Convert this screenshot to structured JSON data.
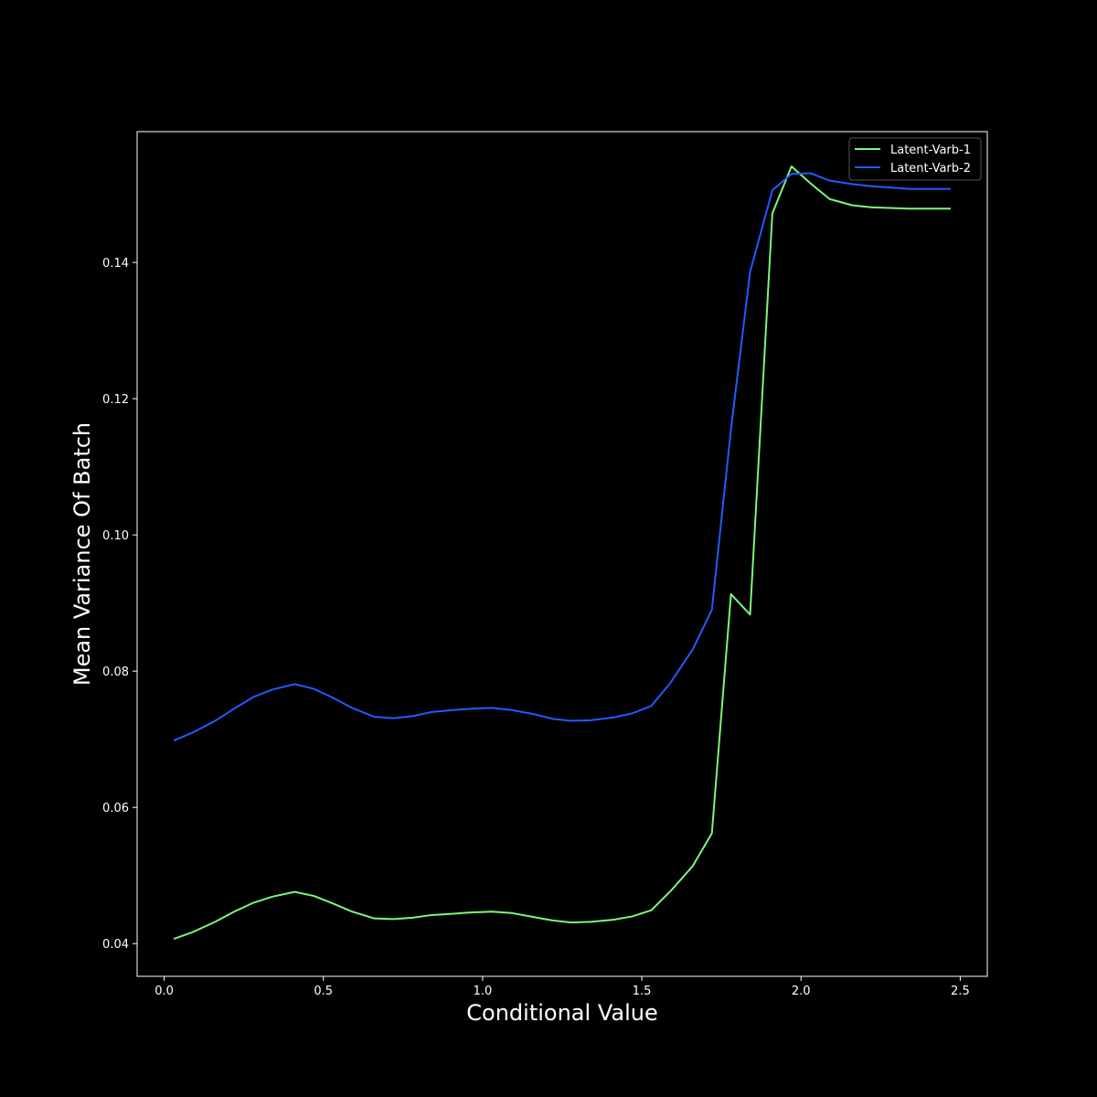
{
  "chart_data": {
    "type": "line",
    "xlabel": "Conditional Value",
    "ylabel": "Mean Variance Of Batch",
    "xlim": [
      -0.085,
      2.585
    ],
    "ylim": [
      0.0352,
      0.1592
    ],
    "xticks": [
      {
        "value": 0.0,
        "label": "0.0"
      },
      {
        "value": 0.5,
        "label": "0.5"
      },
      {
        "value": 1.0,
        "label": "1.0"
      },
      {
        "value": 1.5,
        "label": "1.5"
      },
      {
        "value": 2.0,
        "label": "2.0"
      },
      {
        "value": 2.5,
        "label": "2.5"
      }
    ],
    "yticks": [
      {
        "value": 0.04,
        "label": "0.04"
      },
      {
        "value": 0.06,
        "label": "0.06"
      },
      {
        "value": 0.08,
        "label": "0.08"
      },
      {
        "value": 0.1,
        "label": "0.10"
      },
      {
        "value": 0.12,
        "label": "0.12"
      },
      {
        "value": 0.14,
        "label": "0.14"
      }
    ],
    "grid": false,
    "legend_position": "top-right",
    "background": "#000000",
    "axes_color": "#ffffff",
    "x": [
      0.03,
      0.09,
      0.16,
      0.22,
      0.28,
      0.34,
      0.41,
      0.47,
      0.53,
      0.59,
      0.66,
      0.72,
      0.78,
      0.84,
      0.91,
      0.97,
      1.03,
      1.09,
      1.16,
      1.22,
      1.28,
      1.34,
      1.41,
      1.47,
      1.53,
      1.59,
      1.66,
      1.72,
      1.78,
      1.84,
      1.91,
      1.97,
      2.03,
      2.09,
      2.16,
      2.22,
      2.28,
      2.34,
      2.41,
      2.47
    ],
    "series": [
      {
        "name": "Latent-Varb-1",
        "color": "#7cf77c",
        "values": [
          0.0407,
          0.0417,
          0.0432,
          0.0447,
          0.046,
          0.0469,
          0.0476,
          0.047,
          0.0459,
          0.0447,
          0.0437,
          0.0436,
          0.0438,
          0.0442,
          0.0444,
          0.0446,
          0.0447,
          0.0445,
          0.0439,
          0.0434,
          0.0431,
          0.0432,
          0.0435,
          0.044,
          0.0449,
          0.0477,
          0.0514,
          0.0562,
          0.0913,
          0.0883,
          0.1472,
          0.1541,
          0.1516,
          0.1493,
          0.1484,
          0.1481,
          0.148,
          0.1479,
          0.1479,
          0.1479
        ]
      },
      {
        "name": "Latent-Varb-2",
        "color": "#1f5cff",
        "values": [
          0.0698,
          0.071,
          0.0727,
          0.0745,
          0.0762,
          0.0773,
          0.0781,
          0.0774,
          0.0761,
          0.0746,
          0.0733,
          0.0731,
          0.0734,
          0.074,
          0.0743,
          0.0745,
          0.0746,
          0.0743,
          0.0737,
          0.073,
          0.0727,
          0.0728,
          0.0732,
          0.0738,
          0.0749,
          0.0783,
          0.0832,
          0.089,
          0.1155,
          0.1386,
          0.1506,
          0.153,
          0.1531,
          0.152,
          0.1515,
          0.1512,
          0.151,
          0.1508,
          0.1508,
          0.1508
        ]
      }
    ]
  }
}
